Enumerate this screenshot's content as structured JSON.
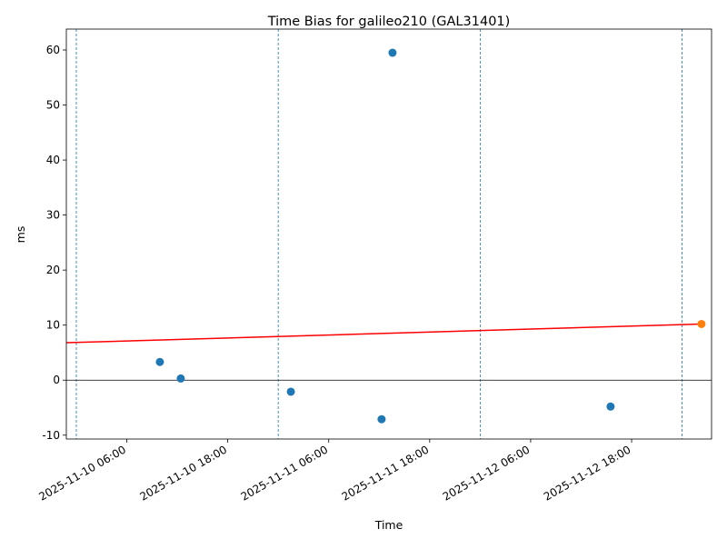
{
  "chart_data": {
    "type": "scatter",
    "title": "Time Bias for galileo210 (GAL31401)",
    "x_label": "Time",
    "y_label": "ms",
    "series": [
      {
        "color": "#1f77b4",
        "x": [
          "2025-11-10 09:56",
          "2025-11-10 12:25",
          "2025-11-11 01:30",
          "2025-11-11 12:17",
          "2025-11-11 13:35",
          "2025-11-12 15:30"
        ],
        "values": [
          3.3,
          0.3,
          -2.1,
          -7.1,
          59.5,
          -4.8
        ]
      },
      {
        "color": "#ff7f0e",
        "x": [
          "2025-11-13 02:18"
        ],
        "values": [
          10.2
        ]
      }
    ],
    "trend": {
      "color": "#ff0000",
      "x": [
        "2025-11-09 22:49",
        "2025-11-13 02:18"
      ],
      "values": [
        6.8,
        10.2
      ]
    },
    "vlines": {
      "color": "#1f77b4",
      "x": [
        "2025-11-10 00:00",
        "2025-11-11 00:00",
        "2025-11-12 00:00",
        "2025-11-13 00:00"
      ]
    },
    "hline": 0,
    "xlim": [
      "2025-11-09 22:49",
      "2025-11-13 03:30"
    ],
    "xticks": [
      "2025-11-10 06:00",
      "2025-11-10 18:00",
      "2025-11-11 06:00",
      "2025-11-11 18:00",
      "2025-11-12 06:00",
      "2025-11-12 18:00"
    ],
    "ylim": [
      -10.7,
      63.8
    ],
    "yticks": [
      -10,
      0,
      10,
      20,
      30,
      40,
      50,
      60
    ]
  }
}
